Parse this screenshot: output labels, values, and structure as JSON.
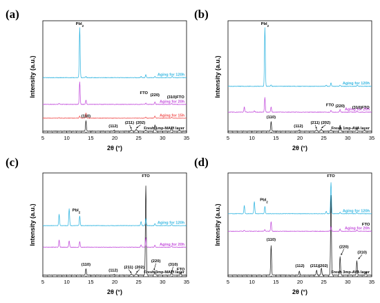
{
  "figure": {
    "colors": {
      "black": "#1a1a1a",
      "red": "#f0504f",
      "magenta": "#c24bdb",
      "cyan": "#2fb4e0"
    },
    "sub_label": "2"
  },
  "chart_data": [
    {
      "type": "line",
      "panel": "(a)",
      "xlabel": "2θ (°)",
      "ylabel": "Intensity (a.u.)",
      "xlim": [
        5,
        35
      ],
      "xticks": [
        5,
        10,
        15,
        20,
        25,
        30,
        35
      ],
      "grid": false,
      "series": [
        {
          "name": "Fresh 1mp-MAPI layer",
          "color": "#1a1a1a",
          "offset": 0,
          "peaks": [
            [
              14.0,
              12
            ],
            [
              19.9,
              1.3
            ],
            [
              23.5,
              1.5
            ],
            [
              24.5,
              2.3
            ],
            [
              26.5,
              1.3
            ],
            [
              28.4,
              7
            ],
            [
              31.9,
              4
            ],
            [
              33.5,
              1.2
            ]
          ]
        },
        {
          "name": "Aging for 15h",
          "color": "#f0504f",
          "offset": 15,
          "peaks": [
            [
              8.4,
              0.6
            ],
            [
              12.7,
              2.5
            ],
            [
              14.0,
              6
            ],
            [
              26.5,
              1.2
            ],
            [
              28.4,
              2.5
            ],
            [
              31.9,
              1.2
            ]
          ]
        },
        {
          "name": "Aging for 20h",
          "color": "#c24bdb",
          "offset": 31,
          "peaks": [
            [
              8.4,
              1.4
            ],
            [
              12.7,
              26
            ],
            [
              14.0,
              5
            ],
            [
              26.5,
              1.5
            ],
            [
              28.4,
              3
            ],
            [
              31.9,
              1.2
            ]
          ]
        },
        {
          "name": "Aging for 120h",
          "color": "#2fb4e0",
          "offset": 62,
          "peaks": [
            [
              12.7,
              58
            ],
            [
              14.0,
              1.3
            ],
            [
              25.5,
              1.4
            ],
            [
              26.5,
              3.5
            ],
            [
              28.4,
              1.5
            ],
            [
              32.0,
              1.5
            ]
          ]
        }
      ],
      "annotations": [
        {
          "text": "PbI",
          "sub": "2",
          "x": 12.7,
          "y": 123
        },
        {
          "text": "(110)",
          "x": 14.0,
          "y": 16
        },
        {
          "text": "(112)",
          "x": 19.7,
          "y": 4.5
        },
        {
          "text": "(211)",
          "x": 23.1,
          "y": 8.5,
          "arrow_to": [
            23.5,
            2.5
          ]
        },
        {
          "text": "(202)",
          "x": 25.4,
          "y": 8.5,
          "arrow_to": [
            24.5,
            3.3
          ]
        },
        {
          "text": "FTO",
          "x": 26.1,
          "y": 43
        },
        {
          "text": "(220)",
          "x": 28.4,
          "y": 40.5
        },
        {
          "text": "(310)",
          "x": 31.9,
          "y": 38
        },
        {
          "text": "FTO",
          "x": 33.7,
          "y": 38
        }
      ],
      "ylim": [
        -2,
        128
      ]
    },
    {
      "type": "line",
      "panel": "(b)",
      "xlabel": "2θ (°)",
      "ylabel": "Intensity (a.u.)",
      "xlim": [
        5,
        35
      ],
      "xticks": [
        5,
        10,
        15,
        20,
        25,
        30,
        35
      ],
      "grid": false,
      "series": [
        {
          "name": "Fresh 1mp-AVA layer",
          "color": "#1a1a1a",
          "offset": 0,
          "peaks": [
            [
              14.0,
              11
            ],
            [
              19.9,
              1.2
            ],
            [
              23.5,
              1.5
            ],
            [
              24.5,
              2.5
            ],
            [
              26.5,
              1.3
            ],
            [
              28.4,
              7
            ],
            [
              31.9,
              4
            ],
            [
              33.5,
              1.2
            ]
          ]
        },
        {
          "name": "Aging for 20h",
          "color": "#c24bdb",
          "offset": 22,
          "peaks": [
            [
              8.4,
              6
            ],
            [
              10.5,
              1.5
            ],
            [
              12.7,
              17
            ],
            [
              14.0,
              6
            ],
            [
              26.5,
              2
            ],
            [
              28.4,
              3
            ],
            [
              31.9,
              1.2
            ]
          ]
        },
        {
          "name": "Aging for 120h",
          "color": "#2fb4e0",
          "offset": 52,
          "peaks": [
            [
              12.7,
              68
            ],
            [
              14.0,
              1.5
            ],
            [
              25.5,
              1.2
            ],
            [
              26.5,
              4
            ],
            [
              28.4,
              1.2
            ],
            [
              32.0,
              1.3
            ]
          ]
        }
      ],
      "annotations": [
        {
          "text": "PbI",
          "sub": "2",
          "x": 12.7,
          "y": 123
        },
        {
          "text": "(110)",
          "x": 14.0,
          "y": 15
        },
        {
          "text": "(112)",
          "x": 19.7,
          "y": 4.5
        },
        {
          "text": "(211)",
          "x": 23.2,
          "y": 8.5,
          "arrow_to": [
            23.5,
            2.5
          ]
        },
        {
          "text": "(202)",
          "x": 25.4,
          "y": 8.5,
          "arrow_to": [
            24.5,
            3.5
          ]
        },
        {
          "text": "FTO",
          "x": 26.3,
          "y": 29
        },
        {
          "text": "(220)",
          "x": 28.4,
          "y": 27.5
        },
        {
          "text": "(310)",
          "x": 31.9,
          "y": 26
        },
        {
          "text": "FTO",
          "x": 33.7,
          "y": 26
        }
      ],
      "ylim": [
        -2,
        128
      ]
    },
    {
      "type": "line",
      "panel": "(c)",
      "xlabel": "2θ (°)",
      "ylabel": "Intensity (a.u.)",
      "xlim": [
        5,
        35
      ],
      "xticks": [
        5,
        10,
        15,
        20,
        25,
        30,
        35
      ],
      "grid": false,
      "series": [
        {
          "name": "Fresh 3mp-MAPI layer",
          "color": "#1a1a1a",
          "offset": 0,
          "peaks": [
            [
              14.0,
              8
            ],
            [
              19.9,
              1
            ],
            [
              23.5,
              1.5
            ],
            [
              24.5,
              2
            ],
            [
              26.5,
              112
            ],
            [
              28.4,
              5
            ],
            [
              31.9,
              3
            ],
            [
              33.8,
              3
            ]
          ]
        },
        {
          "name": "Aging for 20h",
          "color": "#c24bdb",
          "offset": 35,
          "peaks": [
            [
              8.4,
              9
            ],
            [
              10.5,
              8
            ],
            [
              12.7,
              7
            ],
            [
              25.5,
              3
            ],
            [
              26.5,
              12
            ],
            [
              28.4,
              2.5
            ],
            [
              31.9,
              1.5
            ]
          ]
        },
        {
          "name": "Aging for 120h",
          "color": "#2fb4e0",
          "offset": 62,
          "peaks": [
            [
              8.4,
              14
            ],
            [
              10.5,
              21
            ],
            [
              12.7,
              12
            ],
            [
              25.5,
              5
            ],
            [
              26.5,
              9
            ],
            [
              28.4,
              2.5
            ],
            [
              31.9,
              1.5
            ]
          ]
        }
      ],
      "annotations": [
        {
          "text": "FTO",
          "x": 26.5,
          "y": 123
        },
        {
          "text": "PbI",
          "sub": "2",
          "x": 12.0,
          "y": 80
        },
        {
          "text": "(110)",
          "x": 14.0,
          "y": 12
        },
        {
          "text": "(112)",
          "x": 19.7,
          "y": 4.5
        },
        {
          "text": "(211)",
          "x": 22.9,
          "y": 8.5,
          "arrow_to": [
            23.5,
            2.5
          ]
        },
        {
          "text": "(202)",
          "x": 25.2,
          "y": 8.5,
          "arrow_to": [
            24.5,
            3
          ]
        },
        {
          "text": "(220)",
          "x": 28.6,
          "y": 16,
          "arrow_to": [
            28.2,
            6
          ]
        },
        {
          "text": "(310)",
          "x": 32.2,
          "y": 12,
          "arrow_to": [
            31.9,
            4
          ]
        },
        {
          "text": "FTO",
          "x": 33.8,
          "y": 6
        }
      ],
      "ylim": [
        -2,
        128
      ]
    },
    {
      "type": "line",
      "panel": "(d)",
      "xlabel": "2θ (°)",
      "ylabel": "Intensity (a.u.)",
      "xlim": [
        5,
        35
      ],
      "xticks": [
        5,
        10,
        15,
        20,
        25,
        30,
        35
      ],
      "grid": false,
      "series": [
        {
          "name": "Fresh 3mp-AVA layer",
          "color": "#1a1a1a",
          "offset": 0,
          "peaks": [
            [
              14.0,
              37
            ],
            [
              19.9,
              5
            ],
            [
              23.5,
              6
            ],
            [
              24.5,
              9
            ],
            [
              26.5,
              100
            ],
            [
              28.4,
              23
            ],
            [
              31.9,
              18
            ],
            [
              33.8,
              4
            ]
          ]
        },
        {
          "name": "Aging for 20h",
          "color": "#c24bdb",
          "offset": 55,
          "peaks": [
            [
              8.4,
              1
            ],
            [
              12.7,
              2
            ],
            [
              14.0,
              12
            ],
            [
              26.5,
              6
            ],
            [
              28.4,
              3
            ],
            [
              31.9,
              1.5
            ]
          ]
        },
        {
          "name": "Aging for 120h",
          "color": "#2fb4e0",
          "offset": 77,
          "peaks": [
            [
              8.4,
              10
            ],
            [
              10.5,
              15
            ],
            [
              12.7,
              9
            ],
            [
              25.5,
              3
            ],
            [
              26.5,
              39
            ],
            [
              28.4,
              2
            ],
            [
              31.9,
              1.5
            ]
          ]
        }
      ],
      "annotations": [
        {
          "text": "FTO",
          "x": 26.5,
          "y": 123
        },
        {
          "text": "PbI",
          "sub": "2",
          "x": 12.5,
          "y": 93
        },
        {
          "text": "(110)",
          "x": 14.0,
          "y": 43
        },
        {
          "text": "(112)",
          "x": 20.0,
          "y": 10
        },
        {
          "text": "(211)",
          "x": 23.1,
          "y": 10
        },
        {
          "text": "(202)",
          "x": 24.9,
          "y": 10
        },
        {
          "text": "(220)",
          "x": 29.2,
          "y": 34,
          "arrow_to": [
            28.6,
            25
          ]
        },
        {
          "text": "(310)",
          "x": 33.0,
          "y": 27,
          "arrow_to": [
            32.2,
            20
          ]
        },
        {
          "text": "FTO",
          "x": 33.8,
          "y": 62
        }
      ],
      "ylim": [
        -2,
        128
      ]
    }
  ]
}
